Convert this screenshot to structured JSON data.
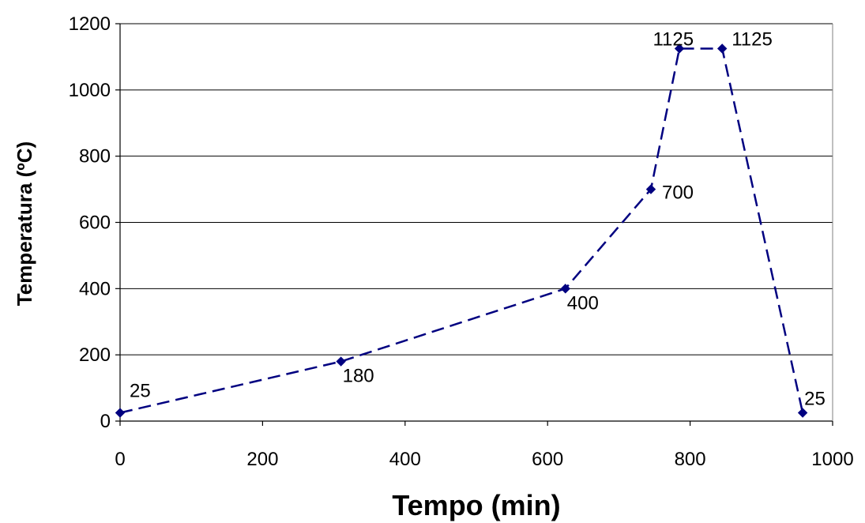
{
  "chart_data": {
    "type": "line",
    "title": "",
    "xlabel": "Tempo (min)",
    "ylabel": "Temperatura (ºC)",
    "xlim": [
      0,
      1000
    ],
    "ylim": [
      0,
      1200
    ],
    "x_ticks": [
      0,
      200,
      400,
      600,
      800,
      1000
    ],
    "y_ticks": [
      0,
      200,
      400,
      600,
      800,
      1000,
      1200
    ],
    "grid": "horizontal",
    "legend": "none",
    "series": [
      {
        "color": "#000080",
        "line_style": "dashed",
        "marker": "diamond",
        "points": [
          {
            "x": 0,
            "y": 25,
            "label": "25"
          },
          {
            "x": 310,
            "y": 180,
            "label": "180"
          },
          {
            "x": 625,
            "y": 400,
            "label": "400"
          },
          {
            "x": 745,
            "y": 700,
            "label": "700"
          },
          {
            "x": 785,
            "y": 1125,
            "label": "1125"
          },
          {
            "x": 845,
            "y": 1125,
            "label": "1125"
          },
          {
            "x": 958,
            "y": 25,
            "label": "25"
          }
        ]
      }
    ]
  }
}
